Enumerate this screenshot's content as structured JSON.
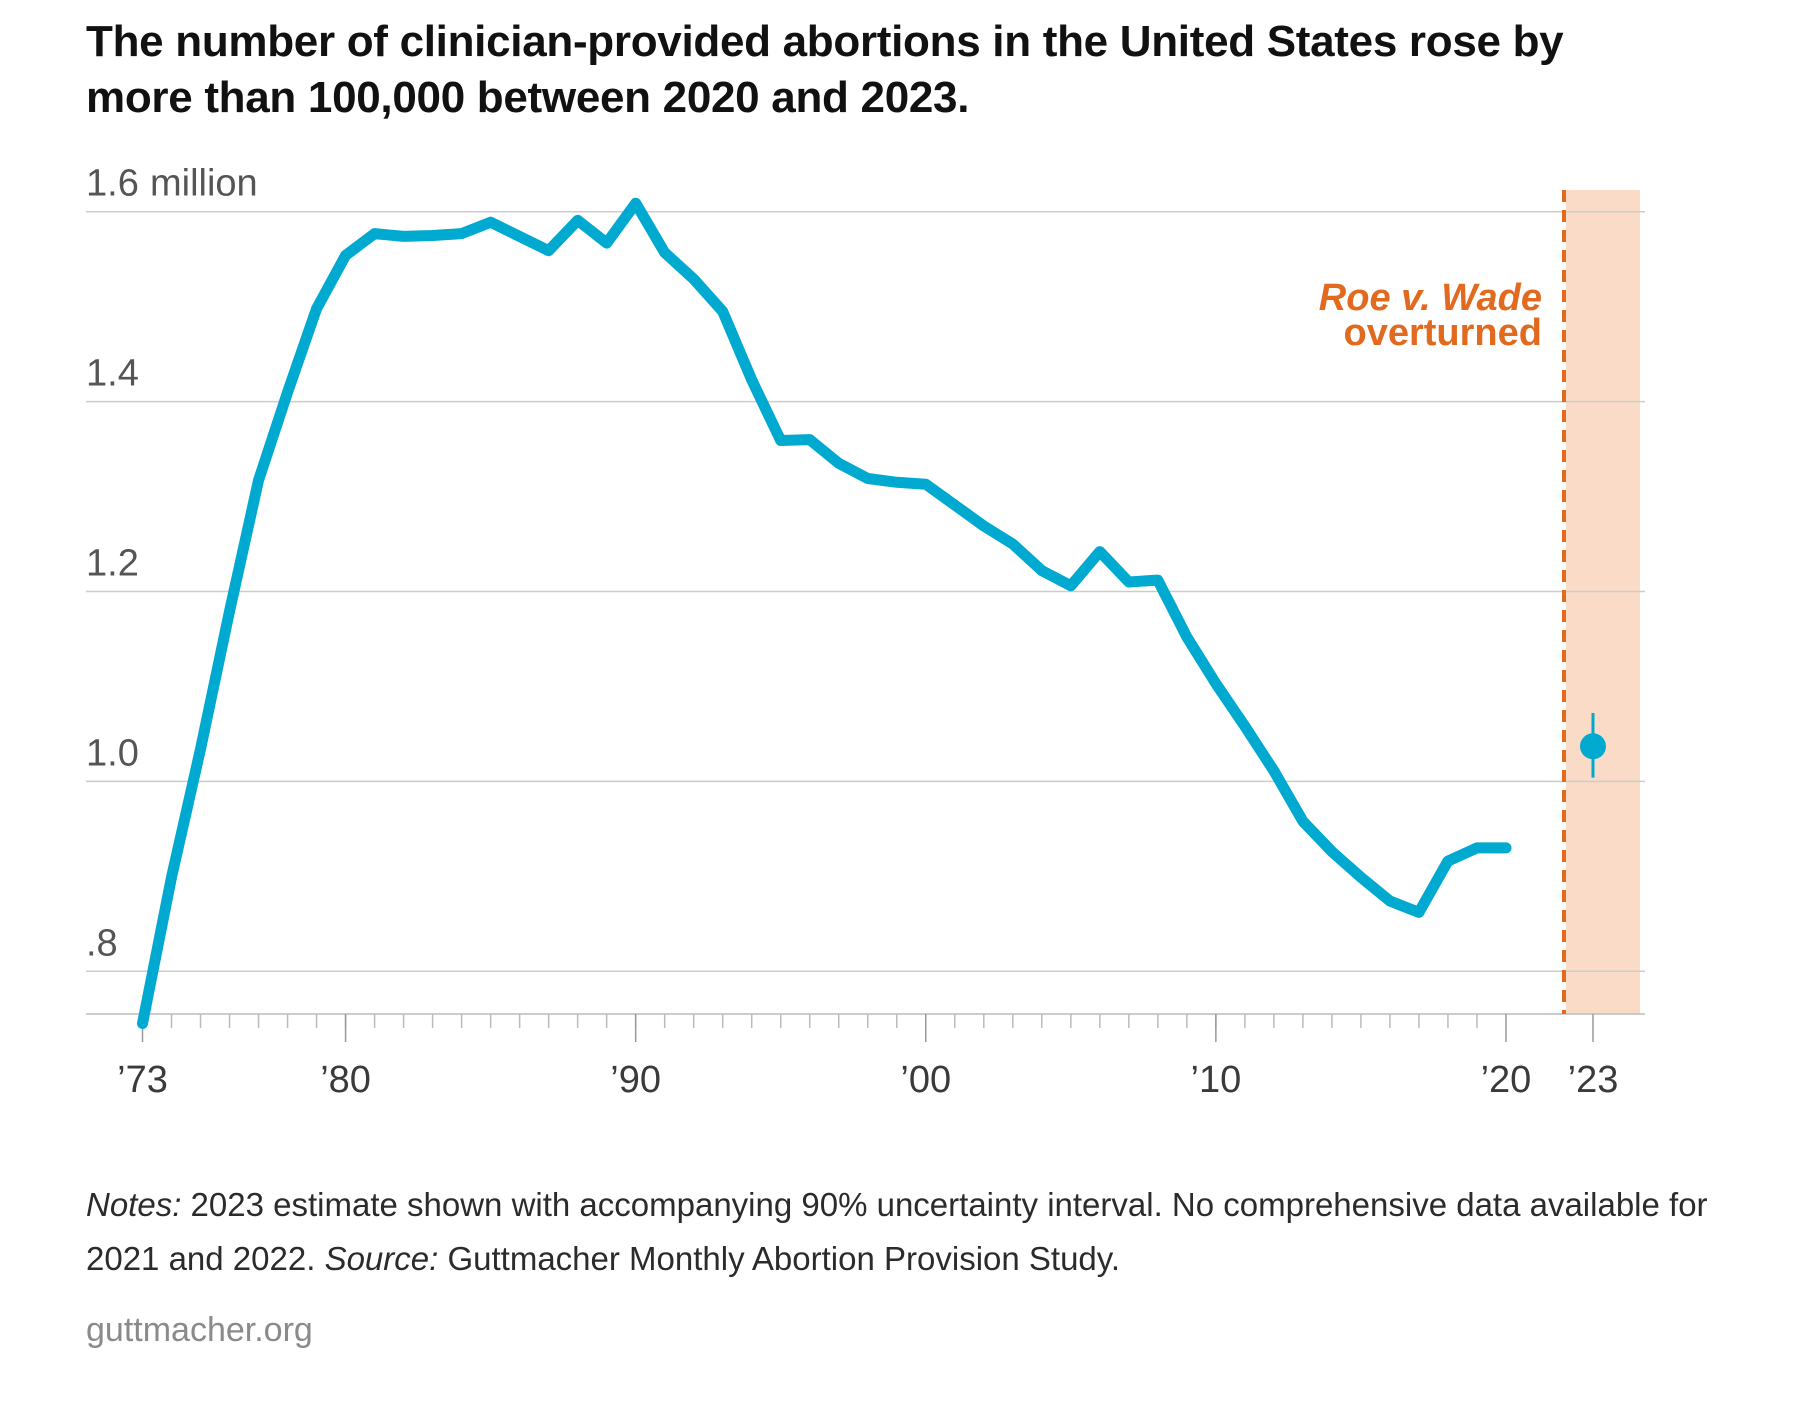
{
  "title": "The number of clinician-provided abortions in the United States rose by more than 100,000 between 2020 and 2023.",
  "chart_data": {
    "type": "line",
    "title": "The number of clinician-provided abortions in the United States rose by more than 100,000 between 2020 and 2023.",
    "ylabel_unit": "million",
    "ylim": [
      0.755,
      1.625
    ],
    "xlim": [
      1972.5,
      2024
    ],
    "yticks": [
      {
        "value": 0.8,
        "label": ".8"
      },
      {
        "value": 1.0,
        "label": "1.0"
      },
      {
        "value": 1.2,
        "label": "1.2"
      },
      {
        "value": 1.4,
        "label": "1.4"
      },
      {
        "value": 1.6,
        "label": "1.6"
      }
    ],
    "xticks": [
      {
        "value": 1973,
        "label": "’73"
      },
      {
        "value": 1980,
        "label": "’80"
      },
      {
        "value": 1990,
        "label": "’90"
      },
      {
        "value": 2000,
        "label": "’00"
      },
      {
        "value": 2010,
        "label": "’10"
      },
      {
        "value": 2020,
        "label": "’20"
      },
      {
        "value": 2023,
        "label": "’23"
      }
    ],
    "minor_tick_range": [
      1974,
      2019
    ],
    "series": [
      {
        "name": "Clinician-provided abortions (millions)",
        "color": "#00a9cf",
        "x": [
          1973,
          1974,
          1975,
          1976,
          1977,
          1978,
          1979,
          1980,
          1981,
          1982,
          1983,
          1984,
          1985,
          1986,
          1987,
          1988,
          1989,
          1990,
          1991,
          1992,
          1993,
          1994,
          1995,
          1996,
          1997,
          1998,
          1999,
          2000,
          2001,
          2002,
          2003,
          2004,
          2005,
          2006,
          2007,
          2008,
          2009,
          2010,
          2011,
          2012,
          2013,
          2014,
          2015,
          2016,
          2017,
          2018,
          2019,
          2020
        ],
        "values": [
          0.745,
          0.899,
          1.034,
          1.179,
          1.317,
          1.41,
          1.498,
          1.554,
          1.577,
          1.574,
          1.575,
          1.577,
          1.589,
          1.574,
          1.559,
          1.591,
          1.567,
          1.609,
          1.557,
          1.529,
          1.495,
          1.423,
          1.359,
          1.36,
          1.335,
          1.319,
          1.315,
          1.313,
          1.291,
          1.269,
          1.25,
          1.222,
          1.206,
          1.242,
          1.21,
          1.212,
          1.152,
          1.103,
          1.058,
          1.011,
          0.958,
          0.926,
          0.899,
          0.874,
          0.862,
          0.916,
          0.93,
          0.93
        ]
      }
    ],
    "estimate": {
      "year": 2023,
      "value": 1.037,
      "ci_low": 1.004,
      "ci_high": 1.072,
      "interval": "90% uncertainty interval",
      "color": "#00a9cf"
    },
    "event": {
      "label_line1": "Roe v. Wade",
      "label_line2": "overturned",
      "x": 2022.0,
      "shade_from": 2022.0,
      "shade_to": 2024.0,
      "line_color": "#e26a1f",
      "shade_color": "#f9dbc7"
    },
    "grid": true,
    "grid_color": "#cccccc"
  },
  "notes": {
    "notes_label": "Notes:",
    "notes_text": " 2023 estimate shown with accompanying 90% uncertainty interval. No comprehensive data available for 2021 and 2022.",
    "source_label": "Source:",
    "source_text": " Guttmacher Monthly Abortion Provision Study."
  },
  "footer": {
    "site": "guttmacher.org"
  }
}
